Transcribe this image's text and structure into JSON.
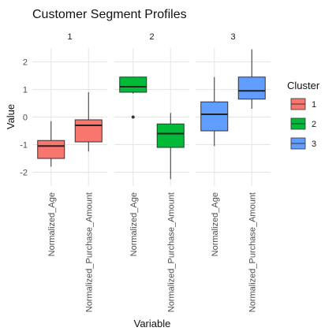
{
  "chart_data": {
    "type": "boxplot",
    "title": "Customer Segment Profiles",
    "xlabel": "Variable",
    "ylabel": "Value",
    "ylim": [
      -2.5,
      2.5
    ],
    "yticks": [
      -2,
      -1,
      0,
      1,
      2
    ],
    "grid": true,
    "legend": {
      "title": "Cluster",
      "placement": "right",
      "entries": [
        {
          "label": "1",
          "color": "#F8766D"
        },
        {
          "label": "2",
          "color": "#00BA38"
        },
        {
          "label": "3",
          "color": "#619CFF"
        }
      ]
    },
    "categories": [
      "Normalized_Age",
      "Normalized_Purchase_Amount"
    ],
    "facets": [
      {
        "strip": "1",
        "color": "#F8766D",
        "boxes": [
          {
            "category": "Normalized_Age",
            "min": -1.8,
            "q1": -1.5,
            "median": -1.05,
            "q3": -0.85,
            "max": -0.15,
            "outliers": []
          },
          {
            "category": "Normalized_Purchase_Amount",
            "min": -1.25,
            "q1": -0.9,
            "median": -0.3,
            "q3": -0.1,
            "max": 0.9,
            "outliers": []
          }
        ]
      },
      {
        "strip": "2",
        "color": "#00BA38",
        "boxes": [
          {
            "category": "Normalized_Age",
            "min": 0.85,
            "q1": 0.9,
            "median": 1.1,
            "q3": 1.45,
            "max": 1.45,
            "outliers": [
              0.0
            ]
          },
          {
            "category": "Normalized_Purchase_Amount",
            "min": -2.25,
            "q1": -1.1,
            "median": -0.6,
            "q3": -0.25,
            "max": 0.15,
            "outliers": []
          }
        ]
      },
      {
        "strip": "3",
        "color": "#619CFF",
        "boxes": [
          {
            "category": "Normalized_Age",
            "min": -1.05,
            "q1": -0.5,
            "median": 0.1,
            "q3": 0.55,
            "max": 1.45,
            "outliers": []
          },
          {
            "category": "Normalized_Purchase_Amount",
            "min": 0.3,
            "q1": 0.65,
            "median": 0.95,
            "q3": 1.45,
            "max": 2.45,
            "outliers": []
          }
        ]
      }
    ]
  }
}
